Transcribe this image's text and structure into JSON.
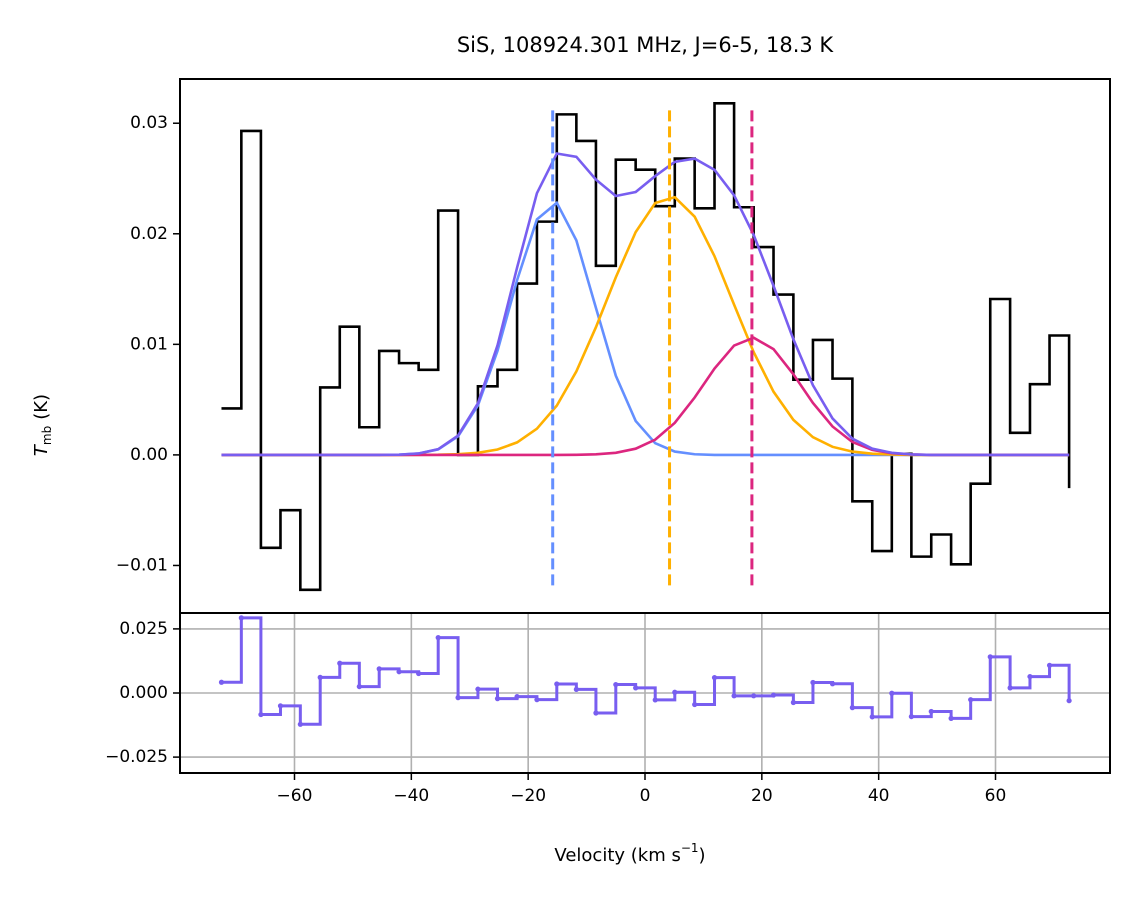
{
  "chart_data": [
    {
      "type": "line",
      "title": "SiS, 108924.301 MHz, J=6-5, 18.3 K",
      "ylabel": "T",
      "ylabel_sub": "mb",
      "ylabel_unit": "(K)",
      "xlim": [
        -79.6,
        79.6
      ],
      "ylim": [
        -0.0143,
        0.034
      ],
      "yticks": [
        {
          "value": -0.01,
          "label": "−0.01"
        },
        {
          "value": 0,
          "label": "0.00"
        },
        0.01,
        0.02,
        0.03
      ],
      "x": [
        -72.5,
        -69.1,
        -65.75,
        -62.4,
        -59.0,
        -55.6,
        -52.25,
        -48.9,
        -45.5,
        -42.1,
        -38.75,
        -35.4,
        -32.0,
        -28.6,
        -25.25,
        -21.9,
        -18.5,
        -15.1,
        -11.75,
        -8.4,
        -5.0,
        -1.6,
        1.75,
        5.1,
        8.5,
        11.9,
        15.25,
        18.6,
        22.0,
        25.4,
        28.75,
        32.1,
        35.5,
        38.9,
        42.25,
        45.6,
        49.0,
        52.4,
        55.75,
        59.1,
        62.5,
        65.9,
        69.25,
        72.6
      ],
      "series": [
        {
          "color": "#000000",
          "drawstyle": "steps-post",
          "values": [
            0.0042,
            0.0293,
            -0.0084,
            -0.005,
            -0.0122,
            0.0061,
            0.0116,
            0.0025,
            0.0094,
            0.0083,
            0.0077,
            0.0221,
            0.0,
            0.0062,
            0.0077,
            0.0155,
            0.0211,
            0.0308,
            0.0284,
            0.0171,
            0.0267,
            0.0258,
            0.0225,
            0.0268,
            0.0223,
            0.0318,
            0.0224,
            0.0188,
            0.0145,
            0.0068,
            0.0104,
            0.0069,
            -0.0042,
            -0.0087,
            0.0001,
            -0.0092,
            -0.0072,
            -0.0099,
            -0.0026,
            0.0141,
            0.002,
            0.0064,
            0.0108,
            -0.003
          ]
        },
        {
          "color": "#648FFF",
          "drawstyle": "default",
          "values": [
            0,
            0,
            0,
            0,
            0,
            0,
            0,
            0,
            0,
            2e-05,
            0.00012,
            0.0005,
            0.00168,
            0.00448,
            0.00941,
            0.0158,
            0.0213,
            0.0228,
            0.0194,
            0.0133,
            0.00717,
            0.00307,
            0.00106,
            0.0003,
            6e-05,
            0,
            0,
            0,
            0,
            0,
            0,
            0,
            0,
            0,
            0,
            0,
            0,
            0,
            0,
            0,
            0,
            0,
            0,
            0
          ]
        },
        {
          "color": "#FFB000",
          "drawstyle": "default",
          "values": [
            0,
            0,
            0,
            0,
            0,
            0,
            0,
            0,
            0,
            0,
            1e-05,
            2e-05,
            7e-05,
            0.00019,
            0.00049,
            0.00113,
            0.00237,
            0.00446,
            0.00755,
            0.01155,
            0.01606,
            0.02015,
            0.02278,
            0.02331,
            0.02155,
            0.01797,
            0.01359,
            0.0093,
            0.00572,
            0.00317,
            0.0016,
            0.00073,
            0.0003,
            0.00011,
            4e-05,
            0,
            0,
            0,
            0,
            0,
            0,
            0,
            0,
            0
          ]
        },
        {
          "color": "#DC267F",
          "drawstyle": "default",
          "values": [
            0,
            0,
            0,
            0,
            0,
            0,
            0,
            0,
            0,
            0,
            0,
            0,
            0,
            0,
            0,
            0,
            0,
            0,
            1e-05,
            5e-05,
            0.00019,
            0.00056,
            0.00138,
            0.0029,
            0.00519,
            0.00781,
            0.00989,
            0.0106,
            0.00957,
            0.00729,
            0.0047,
            0.00257,
            0.00117,
            0.00045,
            0.00015,
            4e-05,
            0,
            0,
            0,
            0,
            0,
            0,
            0,
            0
          ]
        },
        {
          "color": "#785EF0",
          "drawstyle": "default",
          "values": [
            0,
            0,
            0,
            0,
            0,
            0,
            0,
            0,
            0,
            2e-05,
            0.00013,
            0.00052,
            0.00175,
            0.00467,
            0.0099,
            0.01693,
            0.02367,
            0.02726,
            0.02696,
            0.0249,
            0.02342,
            0.02378,
            0.02522,
            0.02651,
            0.0268,
            0.02578,
            0.02348,
            0.0199,
            0.01529,
            0.01046,
            0.0063,
            0.0033,
            0.00147,
            0.00056,
            0.00019,
            4e-05,
            0,
            0,
            0,
            0,
            0,
            0,
            0,
            0
          ]
        }
      ],
      "vlines": [
        {
          "x": -15.8,
          "color": "#648FFF"
        },
        {
          "x": 4.2,
          "color": "#FFB000"
        },
        {
          "x": 18.3,
          "color": "#DC267F"
        }
      ],
      "vline_ylim": [
        -0.0118,
        0.0313
      ]
    },
    {
      "type": "step",
      "xlabel": "Velocity (km s",
      "xlabel_sup": "−1",
      "xlabel_end": ")",
      "xlim": [
        -79.6,
        79.6
      ],
      "ylim": [
        -0.0312,
        0.0312
      ],
      "xticks": [
        {
          "value": -60,
          "label": "−60"
        },
        {
          "value": -40,
          "label": "−40"
        },
        {
          "value": -20,
          "label": "−20"
        },
        0,
        20,
        40,
        60
      ],
      "yticks": [
        {
          "value": -0.025,
          "label": "−0.025"
        },
        {
          "value": 0,
          "label": "0.000"
        },
        0.025
      ],
      "grid": true,
      "x": [
        -72.5,
        -69.1,
        -65.75,
        -62.4,
        -59.0,
        -55.6,
        -52.25,
        -48.9,
        -45.5,
        -42.1,
        -38.75,
        -35.4,
        -32.0,
        -28.6,
        -25.25,
        -21.9,
        -18.5,
        -15.1,
        -11.75,
        -8.4,
        -5.0,
        -1.6,
        1.75,
        5.1,
        8.5,
        11.9,
        15.25,
        18.6,
        22.0,
        25.4,
        28.75,
        32.1,
        35.5,
        38.9,
        42.25,
        45.6,
        49.0,
        52.4,
        55.75,
        59.1,
        62.5,
        65.9,
        69.25,
        72.6
      ],
      "series": [
        {
          "color": "#785EF0",
          "drawstyle": "steps-post",
          "values": [
            0.0042,
            0.0293,
            -0.0084,
            -0.005,
            -0.0122,
            0.0061,
            0.0116,
            0.0025,
            0.0094,
            0.0083,
            0.0076,
            0.0216,
            -0.0018,
            0.0015,
            -0.0022,
            -0.0014,
            -0.0026,
            0.0035,
            0.0014,
            -0.0078,
            0.0033,
            0.002,
            -0.0027,
            0.0003,
            -0.0045,
            0.006,
            -0.0011,
            -0.0011,
            -0.0008,
            -0.0037,
            0.0041,
            0.0036,
            -0.0057,
            -0.0093,
            -0.0001,
            -0.0092,
            -0.0072,
            -0.0099,
            -0.0026,
            0.0141,
            0.002,
            0.0064,
            0.0108,
            -0.003
          ]
        }
      ]
    }
  ]
}
